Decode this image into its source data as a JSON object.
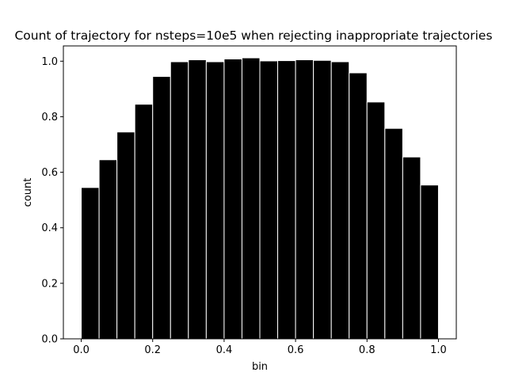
{
  "chart_data": {
    "type": "bar",
    "title": "Count of trajectory for nsteps=10e5 when rejecting inappropriate trajectories",
    "xlabel": "bin",
    "ylabel": "count",
    "bin_width": 0.05,
    "x": [
      0.0,
      0.05,
      0.1,
      0.15,
      0.2,
      0.25,
      0.3,
      0.35,
      0.4,
      0.45,
      0.5,
      0.55,
      0.6,
      0.65,
      0.7,
      0.75,
      0.8,
      0.85,
      0.9,
      0.95
    ],
    "values": [
      0.545,
      0.645,
      0.745,
      0.845,
      0.945,
      0.998,
      1.005,
      0.998,
      1.008,
      1.012,
      1.001,
      1.002,
      1.005,
      1.003,
      0.998,
      0.958,
      0.853,
      0.758,
      0.655,
      0.554
    ],
    "xlim": [
      -0.05,
      1.05
    ],
    "ylim": [
      0.0,
      1.055
    ],
    "xticks": [
      "0.0",
      "0.2",
      "0.4",
      "0.6",
      "0.8",
      "1.0"
    ],
    "yticks": [
      "0.0",
      "0.2",
      "0.4",
      "0.6",
      "0.8",
      "1.0"
    ],
    "bar_color": "#000000",
    "edge_color": "#ffffff",
    "grid": false,
    "legend": "none"
  }
}
